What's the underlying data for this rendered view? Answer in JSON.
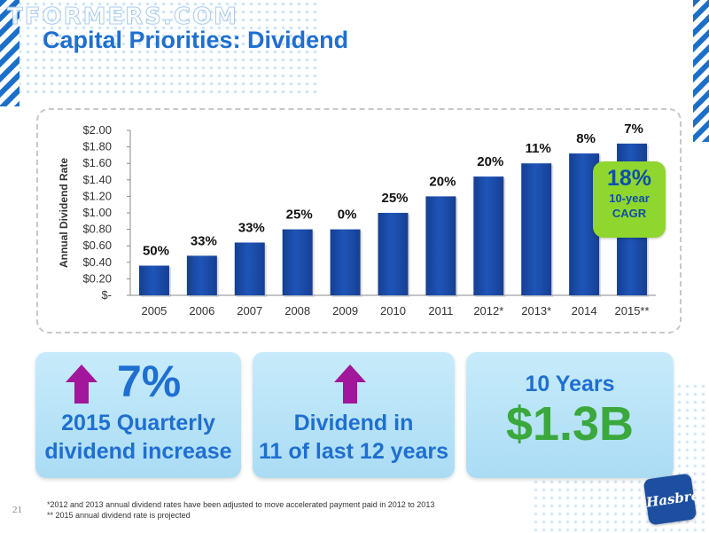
{
  "watermark": "TFORMERS.COM",
  "title": "Capital Priorities: Dividend",
  "chart_data": {
    "type": "bar",
    "ylabel": "Annual Dividend Rate",
    "ylim": [
      0,
      2.0
    ],
    "yticks": [
      "$-",
      "$0.20",
      "$0.40",
      "$0.60",
      "$0.80",
      "$1.00",
      "$1.20",
      "$1.40",
      "$1.60",
      "$1.80",
      "$2.00"
    ],
    "categories": [
      "2005",
      "2006",
      "2007",
      "2008",
      "2009",
      "2010",
      "2011",
      "2012*",
      "2013*",
      "2014",
      "2015**"
    ],
    "values": [
      0.36,
      0.48,
      0.64,
      0.8,
      0.8,
      1.0,
      1.2,
      1.44,
      1.6,
      1.72,
      1.84
    ],
    "growth_labels": [
      "50%",
      "33%",
      "33%",
      "25%",
      "0%",
      "25%",
      "20%",
      "20%",
      "11%",
      "8%",
      "7%"
    ],
    "bar_color": "#1f55b8"
  },
  "cagr": {
    "value": "18%",
    "line1": "10-year",
    "line2": "CAGR"
  },
  "panels": {
    "left": {
      "percent": "7%",
      "line1": "2015 Quarterly",
      "line2": "dividend increase",
      "icon": "up-arrow-icon"
    },
    "middle": {
      "line1": "Dividend in",
      "line2": "11 of last 12 years",
      "icon": "up-arrow-icon"
    },
    "right": {
      "years": "10 Years",
      "amount": "$1.3B"
    }
  },
  "footnotes": {
    "line1": "*2012 and 2013 annual dividend rates have been adjusted to move accelerated payment paid in 2012 to 2013",
    "line2": "** 2015 annual dividend rate is projected"
  },
  "page_number": "21",
  "logo": "Hasbro",
  "colors": {
    "accent": "#1f6fd0",
    "arrow": "#a1169a",
    "green": "#3aa83c",
    "cagr_badge": "#8fd62e"
  }
}
